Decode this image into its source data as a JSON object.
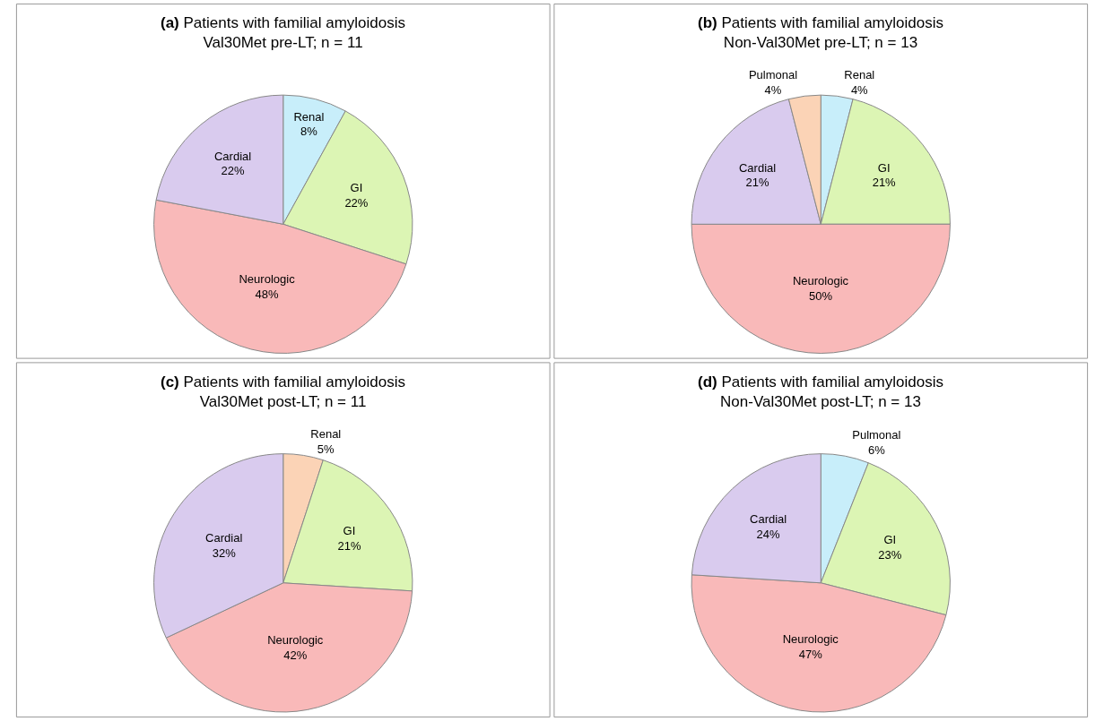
{
  "chart_data": [
    {
      "type": "pie",
      "title": "(a) Patients with familial amyloidosis\nVal30Met pre-LT; n = 11",
      "categories": [
        "Renal",
        "GI",
        "Neurologic",
        "Cardial"
      ],
      "values": [
        8,
        22,
        48,
        22
      ],
      "value_labels": [
        "8%",
        "22%",
        "48%",
        "22%"
      ],
      "colors": [
        "#c8eefa",
        "#dcf5b4",
        "#f9b9b9",
        "#d9cbee"
      ],
      "legend": false
    },
    {
      "type": "pie",
      "title": "(b) Patients with familial amyloidosis\nNon-Val30Met pre-LT; n = 13",
      "categories": [
        "Renal",
        "GI",
        "Neurologic",
        "Cardial",
        "Pulmonal"
      ],
      "values": [
        4,
        21,
        50,
        21,
        4
      ],
      "value_labels": [
        "4%",
        "21%",
        "50%",
        "21%",
        "4%"
      ],
      "colors": [
        "#c8eefa",
        "#dcf5b4",
        "#f9b9b9",
        "#d9cbee",
        "#fbd3b6"
      ],
      "legend": false
    },
    {
      "type": "pie",
      "title": "(c) Patients with familial amyloidosis\nVal30Met post-LT; n = 11",
      "categories": [
        "Renal",
        "GI",
        "Neurologic",
        "Cardial"
      ],
      "values": [
        5,
        21,
        42,
        32
      ],
      "value_labels": [
        "5%",
        "21%",
        "42%",
        "32%"
      ],
      "colors": [
        "#fbd3b6",
        "#dcf5b4",
        "#f9b9b9",
        "#d9cbee"
      ],
      "legend": false
    },
    {
      "type": "pie",
      "title": "(d) Patients with familial amyloidosis\nNon-Val30Met post-LT; n = 13",
      "categories": [
        "Pulmonal",
        "GI",
        "Neurologic",
        "Cardial"
      ],
      "values": [
        6,
        23,
        47,
        24
      ],
      "value_labels": [
        "6%",
        "23%",
        "47%",
        "24%"
      ],
      "colors": [
        "#c8eefa",
        "#dcf5b4",
        "#f9b9b9",
        "#d9cbee"
      ],
      "legend": false
    }
  ]
}
